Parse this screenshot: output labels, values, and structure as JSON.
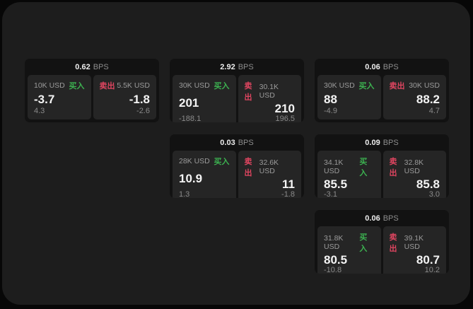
{
  "labels": {
    "bps_unit": "BPS",
    "buy": "买入",
    "sell": "卖出"
  },
  "colors": {
    "window_bg": "#1d1d1d",
    "card_bg": "#121212",
    "panel_bg": "#252525",
    "buy_accent": "#3cb150",
    "sell_accent": "#df4560"
  },
  "cards": [
    {
      "bps": "0.62",
      "buy": {
        "amount": "10K USD",
        "price": "-3.7",
        "delta": "4.3"
      },
      "sell": {
        "amount": "5.5K USD",
        "price": "-1.8",
        "delta": "-2.6"
      }
    },
    {
      "bps": "2.92",
      "buy": {
        "amount": "30K USD",
        "price": "201",
        "delta": "-188.1"
      },
      "sell": {
        "amount": "30.1K USD",
        "price": "210",
        "delta": "196.5"
      }
    },
    {
      "bps": "0.06",
      "buy": {
        "amount": "30K USD",
        "price": "88",
        "delta": "-4.9"
      },
      "sell": {
        "amount": "30K USD",
        "price": "88.2",
        "delta": "4.7"
      }
    },
    {
      "bps": "0.03",
      "buy": {
        "amount": "28K USD",
        "price": "10.9",
        "delta": "1.3"
      },
      "sell": {
        "amount": "32.6K USD",
        "price": "11",
        "delta": "-1.8"
      }
    },
    {
      "bps": "0.09",
      "buy": {
        "amount": "34.1K USD",
        "price": "85.5",
        "delta": "-3.1"
      },
      "sell": {
        "amount": "32.8K USD",
        "price": "85.8",
        "delta": "3.0"
      }
    },
    {
      "bps": "0.06",
      "buy": {
        "amount": "31.8K USD",
        "price": "80.5",
        "delta": "-10.8"
      },
      "sell": {
        "amount": "39.1K USD",
        "price": "80.7",
        "delta": "10.2"
      }
    }
  ]
}
